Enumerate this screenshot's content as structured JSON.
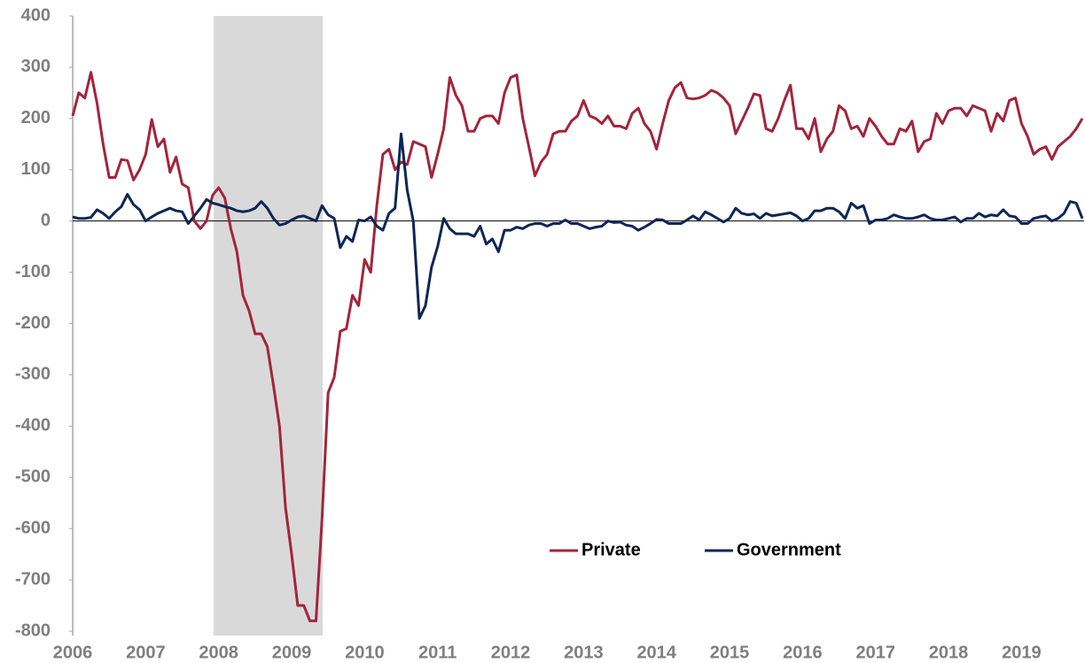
{
  "chart_data": {
    "type": "line",
    "categories": [
      "2006",
      null,
      null,
      null,
      null,
      null,
      null,
      null,
      null,
      null,
      null,
      null,
      "2007",
      null,
      null,
      null,
      null,
      null,
      null,
      null,
      null,
      null,
      null,
      null,
      "2008",
      null,
      null,
      null,
      null,
      null,
      null,
      null,
      null,
      null,
      null,
      null,
      "2009",
      null,
      null,
      null,
      null,
      null,
      null,
      null,
      null,
      null,
      null,
      null,
      "2010",
      null,
      null,
      null,
      null,
      null,
      null,
      null,
      null,
      null,
      null,
      null,
      "2011",
      null,
      null,
      null,
      null,
      null,
      null,
      null,
      null,
      null,
      null,
      null,
      "2012",
      null,
      null,
      null,
      null,
      null,
      null,
      null,
      null,
      null,
      null,
      null,
      "2013",
      null,
      null,
      null,
      null,
      null,
      null,
      null,
      null,
      null,
      null,
      null,
      "2014",
      null,
      null,
      null,
      null,
      null,
      null,
      null,
      null,
      null,
      null,
      null,
      "2015",
      null,
      null,
      null,
      null,
      null,
      null,
      null,
      null,
      null,
      null,
      null,
      "2016",
      null,
      null,
      null,
      null,
      null,
      null,
      null,
      null,
      null,
      null,
      null,
      "2017",
      null,
      null,
      null,
      null,
      null,
      null,
      null,
      null,
      null,
      null,
      null,
      "2018",
      null,
      null,
      null,
      null,
      null,
      null,
      null,
      null,
      null,
      null,
      null,
      "2019",
      null,
      null,
      null,
      null,
      null,
      null,
      null,
      null,
      null,
      null
    ],
    "series": [
      {
        "name": "Private",
        "color": "#a3243b",
        "values": [
          205,
          250,
          240,
          290,
          230,
          150,
          85,
          85,
          120,
          118,
          80,
          100,
          130,
          198,
          145,
          160,
          95,
          125,
          72,
          65,
          0,
          -15,
          0,
          50,
          65,
          45,
          -15,
          -60,
          -145,
          -175,
          -220,
          -220,
          -245,
          -320,
          -400,
          -560,
          -650,
          -750,
          -750,
          -780,
          -780,
          -580,
          -335,
          -305,
          -215,
          -210,
          -145,
          -165,
          -75,
          -100,
          30,
          130,
          140,
          100,
          115,
          110,
          155,
          150,
          145,
          85,
          130,
          180,
          280,
          245,
          225,
          175,
          175,
          200,
          205,
          205,
          190,
          250,
          280,
          285,
          200,
          145,
          88,
          115,
          130,
          170,
          175,
          175,
          195,
          205,
          235,
          205,
          200,
          190,
          205,
          185,
          185,
          180,
          210,
          220,
          190,
          175,
          140,
          190,
          235,
          260,
          270,
          240,
          238,
          240,
          245,
          255,
          250,
          240,
          225,
          170,
          195,
          220,
          248,
          245,
          180,
          175,
          200,
          235,
          265,
          180,
          180,
          160,
          200,
          135,
          160,
          175,
          225,
          215,
          180,
          185,
          165,
          200,
          185,
          165,
          150,
          150,
          180,
          175,
          195,
          135,
          155,
          160,
          210,
          190,
          215,
          220,
          220,
          205,
          225,
          220,
          215,
          175,
          210,
          195,
          235,
          240,
          190,
          165,
          130,
          140,
          145,
          120,
          145,
          155,
          165,
          180,
          200
        ]
      },
      {
        "name": "Government",
        "color": "#0d2657",
        "values": [
          8,
          5,
          5,
          7,
          22,
          15,
          5,
          18,
          28,
          52,
          32,
          22,
          0,
          8,
          15,
          20,
          25,
          20,
          18,
          -5,
          10,
          25,
          42,
          35,
          32,
          28,
          25,
          20,
          18,
          20,
          25,
          38,
          25,
          5,
          -8,
          -5,
          2,
          8,
          10,
          5,
          0,
          30,
          12,
          5,
          -52,
          -30,
          -40,
          2,
          0,
          8,
          -10,
          -18,
          15,
          25,
          170,
          60,
          0,
          -190,
          -165,
          -90,
          -50,
          5,
          -15,
          -25,
          -25,
          -25,
          -30,
          -10,
          -45,
          -35,
          -60,
          -18,
          -18,
          -12,
          -15,
          -8,
          -5,
          -5,
          -10,
          -5,
          -5,
          2,
          -5,
          -5,
          -10,
          -15,
          -12,
          -10,
          0,
          -3,
          -2,
          -8,
          -10,
          -18,
          -12,
          -5,
          3,
          2,
          -5,
          -5,
          -5,
          2,
          10,
          2,
          18,
          12,
          5,
          -2,
          5,
          25,
          15,
          12,
          14,
          5,
          15,
          10,
          12,
          14,
          16,
          10,
          0,
          5,
          20,
          20,
          25,
          25,
          18,
          5,
          35,
          25,
          30,
          -5,
          2,
          2,
          5,
          12,
          8,
          5,
          5,
          8,
          12,
          5,
          2,
          2,
          5,
          8,
          -2,
          5,
          5,
          15,
          8,
          12,
          10,
          22,
          10,
          8,
          -5,
          -5,
          5,
          8,
          10,
          0,
          5,
          15,
          38,
          35,
          5
        ]
      }
    ],
    "ylim": [
      -800,
      400
    ],
    "yticks": [
      -800,
      -700,
      -600,
      -500,
      -400,
      -300,
      -200,
      -100,
      0,
      100,
      200,
      300,
      400
    ],
    "grid": false,
    "legend": "lower center"
  }
}
